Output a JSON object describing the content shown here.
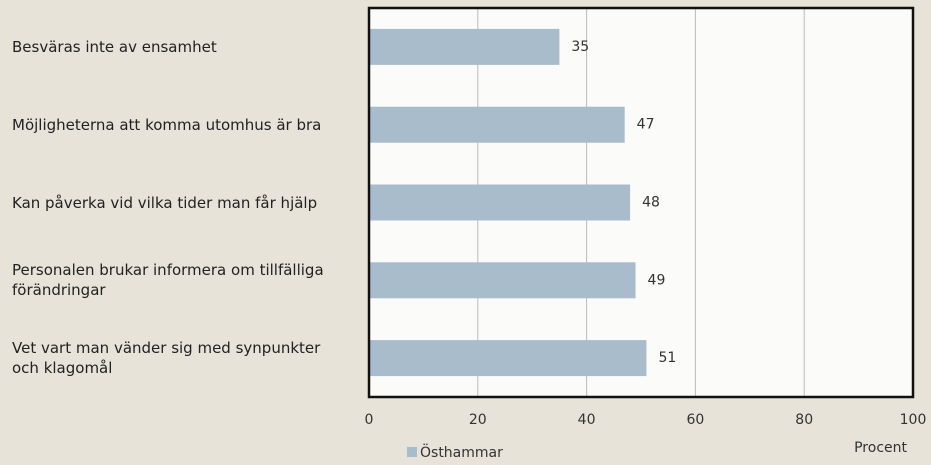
{
  "chart_data": {
    "type": "bar",
    "orientation": "horizontal",
    "categories": [
      "Besväras inte av ensamhet",
      "Möjligheterna att komma utomhus är bra",
      "Kan påverka vid vilka tider man får hjälp",
      "Personalen brukar informera om tillfälliga förändringar",
      "Vet vart man vänder sig med synpunkter och klagomål"
    ],
    "series": [
      {
        "name": "Östhammar",
        "color": "#a9bccb",
        "values": [
          35,
          47,
          48,
          49,
          51
        ]
      }
    ],
    "xlim": [
      0,
      100
    ],
    "xticks": [
      0,
      20,
      40,
      60,
      80,
      100
    ],
    "xlabel": "Procent",
    "grid": true
  }
}
